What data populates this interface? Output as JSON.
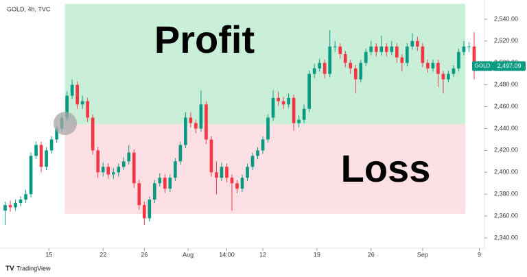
{
  "chart_data": {
    "type": "candlestick",
    "title": "GOLD, 4h, TVC",
    "footer": "TradingView",
    "series_name": "GOLD",
    "last_price_label": "2,497.09",
    "up_color": "#089981",
    "down_color": "#f23645",
    "grid": false,
    "xlim": [
      -1,
      93
    ],
    "xticks": [
      {
        "value": 8.5,
        "label": "15"
      },
      {
        "value": 19,
        "label": "22"
      },
      {
        "value": 27,
        "label": "26"
      },
      {
        "value": 35.5,
        "label": "Aug"
      },
      {
        "value": 43,
        "label": "14:00"
      },
      {
        "value": 50,
        "label": "12"
      },
      {
        "value": 60.5,
        "label": "19"
      },
      {
        "value": 71,
        "label": "26"
      },
      {
        "value": 81,
        "label": "Sep"
      },
      {
        "value": 92,
        "label": "9"
      }
    ],
    "ylim": [
      2330.6,
      2557.5
    ],
    "yticks": [
      {
        "value": 2340,
        "label": "2,340.00"
      },
      {
        "value": 2360,
        "label": "2,360.00"
      },
      {
        "value": 2380,
        "label": "2,380.00"
      },
      {
        "value": 2400,
        "label": "2,400.00"
      },
      {
        "value": 2420,
        "label": "2,420.00"
      },
      {
        "value": 2440,
        "label": "2,440.00"
      },
      {
        "value": 2460,
        "label": "2,460.00"
      },
      {
        "value": 2480,
        "label": "2,480.00"
      },
      {
        "value": 2500,
        "label": "2,500.00"
      },
      {
        "value": 2520,
        "label": "2,520.00"
      },
      {
        "value": 2540,
        "label": "2,540.00"
      }
    ],
    "zones": [
      {
        "label": "Profit",
        "color": "#c9efd9",
        "x": [
          11.6,
          89.3
        ],
        "y": [
          2444,
          2554
        ]
      },
      {
        "label": "Loss",
        "color": "#fde0e3",
        "x": [
          11.6,
          89.3
        ],
        "y": [
          2362,
          2444
        ]
      }
    ],
    "open": [
      2365,
      2370,
      2368,
      2372,
      2375,
      2380,
      2415,
      2425,
      2405,
      2420,
      2430,
      2440,
      2450,
      2470,
      2480,
      2462,
      2465,
      2450,
      2420,
      2400,
      2405,
      2398,
      2400,
      2405,
      2410,
      2418,
      2390,
      2370,
      2358,
      2375,
      2390,
      2395,
      2385,
      2395,
      2410,
      2425,
      2450,
      2445,
      2440,
      2462,
      2430,
      2400,
      2395,
      2405,
      2395,
      2390,
      2385,
      2395,
      2405,
      2415,
      2420,
      2430,
      2450,
      2468,
      2465,
      2462,
      2468,
      2445,
      2448,
      2458,
      2490,
      2495,
      2500,
      2490,
      2515,
      2515,
      2508,
      2500,
      2495,
      2485,
      2500,
      2510,
      2515,
      2510,
      2515,
      2510,
      2515,
      2505,
      2500,
      2515,
      2520,
      2515,
      2500,
      2495,
      2500,
      2490,
      2485,
      2490,
      2495,
      2510,
      2515,
      2515
    ],
    "high": [
      2373,
      2374,
      2375,
      2378,
      2384,
      2418,
      2428,
      2428,
      2423,
      2433,
      2443,
      2453,
      2474,
      2485,
      2483,
      2470,
      2468,
      2453,
      2423,
      2409,
      2408,
      2404,
      2408,
      2414,
      2425,
      2421,
      2393,
      2373,
      2378,
      2393,
      2399,
      2398,
      2398,
      2413,
      2428,
      2455,
      2455,
      2448,
      2475,
      2465,
      2433,
      2410,
      2409,
      2408,
      2398,
      2393,
      2398,
      2408,
      2418,
      2423,
      2433,
      2453,
      2475,
      2474,
      2469,
      2472,
      2471,
      2452,
      2462,
      2493,
      2499,
      2504,
      2503,
      2530,
      2520,
      2518,
      2511,
      2503,
      2498,
      2503,
      2513,
      2520,
      2518,
      2525,
      2518,
      2520,
      2518,
      2508,
      2518,
      2527,
      2524,
      2518,
      2503,
      2503,
      2503,
      2493,
      2493,
      2498,
      2513,
      2520,
      2519,
      2528
    ],
    "low": [
      2352,
      2364,
      2365,
      2369,
      2372,
      2377,
      2412,
      2400,
      2402,
      2417,
      2427,
      2437,
      2447,
      2467,
      2458,
      2458,
      2446,
      2416,
      2395,
      2396,
      2394,
      2394,
      2396,
      2402,
      2407,
      2386,
      2366,
      2352,
      2355,
      2372,
      2387,
      2381,
      2382,
      2392,
      2407,
      2422,
      2441,
      2436,
      2437,
      2426,
      2396,
      2380,
      2392,
      2391,
      2365,
      2381,
      2382,
      2392,
      2402,
      2412,
      2417,
      2427,
      2447,
      2461,
      2458,
      2459,
      2438,
      2441,
      2445,
      2455,
      2486,
      2492,
      2486,
      2487,
      2510,
      2504,
      2496,
      2490,
      2472,
      2482,
      2497,
      2507,
      2506,
      2507,
      2506,
      2507,
      2500,
      2492,
      2497,
      2512,
      2511,
      2496,
      2491,
      2492,
      2478,
      2472,
      2482,
      2487,
      2492,
      2507,
      2510,
      2485
    ],
    "close": [
      2370,
      2368,
      2372,
      2375,
      2380,
      2415,
      2425,
      2405,
      2420,
      2430,
      2440,
      2450,
      2470,
      2480,
      2462,
      2465,
      2450,
      2420,
      2400,
      2405,
      2398,
      2400,
      2405,
      2410,
      2418,
      2390,
      2370,
      2358,
      2375,
      2390,
      2395,
      2385,
      2395,
      2410,
      2425,
      2450,
      2445,
      2440,
      2462,
      2430,
      2400,
      2395,
      2405,
      2395,
      2390,
      2385,
      2395,
      2405,
      2415,
      2420,
      2430,
      2450,
      2468,
      2465,
      2462,
      2468,
      2445,
      2448,
      2458,
      2490,
      2495,
      2500,
      2490,
      2515,
      2515,
      2508,
      2500,
      2495,
      2485,
      2500,
      2510,
      2515,
      2510,
      2515,
      2510,
      2515,
      2505,
      2500,
      2515,
      2520,
      2515,
      2500,
      2495,
      2500,
      2490,
      2485,
      2490,
      2495,
      2510,
      2515,
      2515,
      2497.09
    ]
  }
}
